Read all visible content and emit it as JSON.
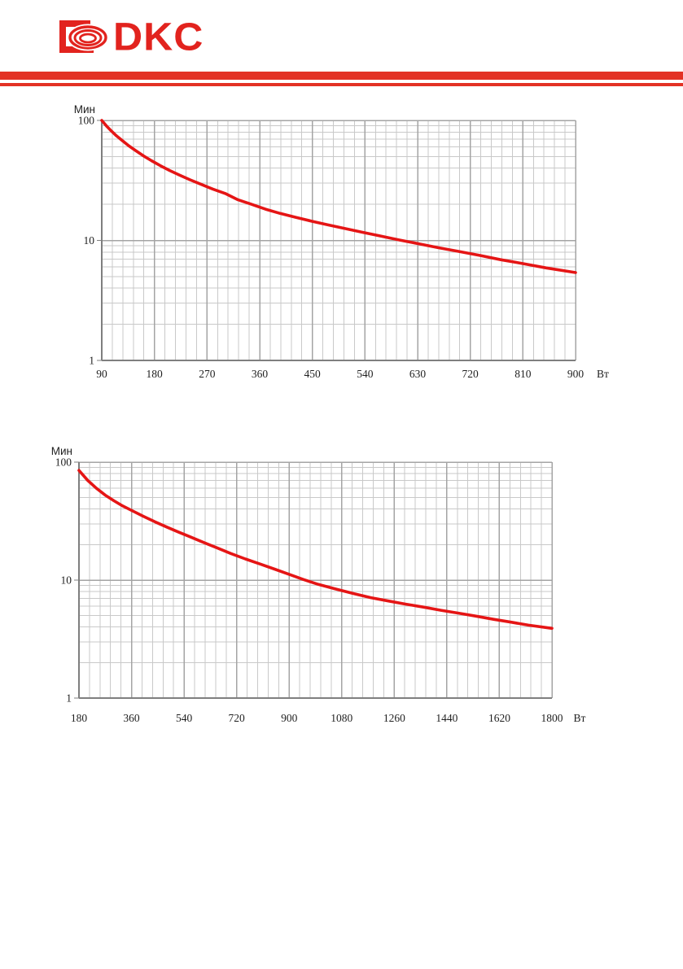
{
  "header": {
    "logo_text": "DKC",
    "logo_color": "#e2231e",
    "rule_color": "#e33225"
  },
  "chart_data": [
    {
      "type": "line",
      "title": "",
      "ylabel": "Мин",
      "xlabel": "Вт",
      "x_scale": "linear",
      "y_scale": "log",
      "xlim": [
        90,
        900
      ],
      "ylim": [
        1,
        100
      ],
      "x_ticks": [
        90,
        180,
        270,
        360,
        450,
        540,
        630,
        720,
        810,
        900
      ],
      "x_minor_step": 18,
      "y_ticks": [
        100,
        10,
        1
      ],
      "grid": true,
      "legend": "none",
      "curve_color": "#e51515",
      "series": [
        {
          "name": "backup-time-vs-load",
          "points": [
            [
              90,
              100
            ],
            [
              98,
              90
            ],
            [
              106,
              82
            ],
            [
              115,
              74.5
            ],
            [
              125,
              68
            ],
            [
              136,
              61.5
            ],
            [
              148,
              56
            ],
            [
              161,
              50.8
            ],
            [
              175,
              46.2
            ],
            [
              190,
              42
            ],
            [
              206,
              38.3
            ],
            [
              223,
              35
            ],
            [
              241,
              32
            ],
            [
              260,
              29.3
            ],
            [
              280,
              26.8
            ],
            [
              301,
              24.6
            ],
            [
              323,
              21.8
            ],
            [
              346,
              20.0
            ],
            [
              370,
              18.2
            ],
            [
              395,
              16.8
            ],
            [
              421,
              15.6
            ],
            [
              448,
              14.5
            ],
            [
              476,
              13.5
            ],
            [
              505,
              12.6
            ],
            [
              535,
              11.7
            ],
            [
              566,
              10.9
            ],
            [
              598,
              10.1
            ],
            [
              631,
              9.4
            ],
            [
              665,
              8.7
            ],
            [
              700,
              8.1
            ],
            [
              736,
              7.5
            ],
            [
              773,
              6.9
            ],
            [
              811,
              6.4
            ],
            [
              850,
              5.9
            ],
            [
              900,
              5.4
            ]
          ]
        }
      ]
    },
    {
      "type": "line",
      "title": "",
      "ylabel": "Мин",
      "xlabel": "Вт",
      "x_scale": "linear",
      "y_scale": "log",
      "xlim": [
        180,
        1800
      ],
      "ylim": [
        1,
        100
      ],
      "x_ticks": [
        180,
        360,
        540,
        720,
        900,
        1080,
        1260,
        1440,
        1620,
        1800
      ],
      "x_minor_step": 36,
      "y_ticks": [
        100,
        10,
        1
      ],
      "grid": true,
      "legend": "none",
      "curve_color": "#e51515",
      "series": [
        {
          "name": "backup-time-vs-load",
          "points": [
            [
              180,
              85
            ],
            [
              210,
              70
            ],
            [
              240,
              60
            ],
            [
              270,
              52.5
            ],
            [
              300,
              47
            ],
            [
              330,
              42.5
            ],
            [
              360,
              39
            ],
            [
              400,
              34.8
            ],
            [
              440,
              31.2
            ],
            [
              480,
              28.2
            ],
            [
              520,
              25.6
            ],
            [
              560,
              23.3
            ],
            [
              600,
              21.2
            ],
            [
              650,
              18.9
            ],
            [
              700,
              16.8
            ],
            [
              750,
              15.1
            ],
            [
              800,
              13.7
            ],
            [
              850,
              12.4
            ],
            [
              900,
              11.2
            ],
            [
              950,
              10.1
            ],
            [
              1000,
              9.2
            ],
            [
              1060,
              8.4
            ],
            [
              1120,
              7.7
            ],
            [
              1180,
              7.1
            ],
            [
              1240,
              6.65
            ],
            [
              1300,
              6.25
            ],
            [
              1360,
              5.9
            ],
            [
              1420,
              5.55
            ],
            [
              1480,
              5.25
            ],
            [
              1540,
              4.95
            ],
            [
              1600,
              4.65
            ],
            [
              1660,
              4.4
            ],
            [
              1720,
              4.15
            ],
            [
              1800,
              3.9
            ]
          ]
        }
      ]
    }
  ],
  "colors": {
    "grid_minor": "#c9c9c9",
    "grid_major": "#a4a4a4",
    "axis": "#7f7f7f",
    "label": "#1f1f1f"
  }
}
